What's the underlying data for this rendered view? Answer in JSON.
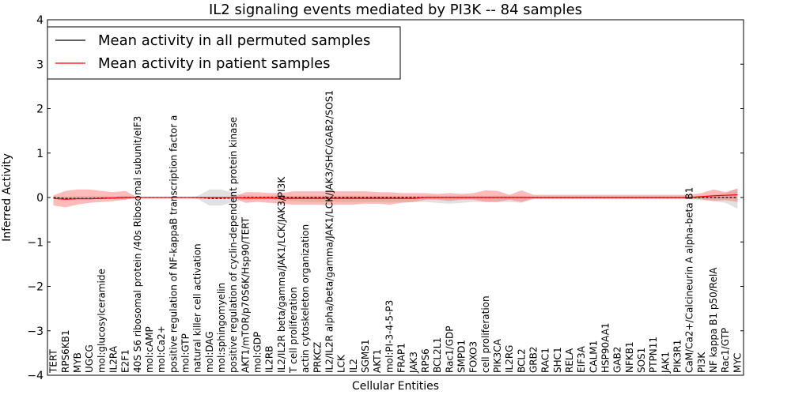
{
  "chart_data": {
    "type": "line",
    "title": "IL2 signaling events mediated by PI3K -- 84 samples",
    "xlabel": "Cellular Entities",
    "ylabel": "Inferred Activity",
    "ylim": [
      -4,
      4
    ],
    "yticks": [
      "4",
      "3",
      "2",
      "1",
      "0",
      "−1",
      "−2",
      "−3",
      "−4"
    ],
    "ytick_values": [
      4,
      3,
      2,
      1,
      0,
      -1,
      -2,
      -3,
      -4
    ],
    "legend": {
      "position": "top-left",
      "entries": [
        {
          "label": "Mean activity in all permuted samples",
          "color": "#000000"
        },
        {
          "label": "Mean activity in patient samples",
          "color": "#ff0000"
        }
      ]
    },
    "colors": {
      "permuted": "#000000",
      "patient": "#ff0000",
      "permuted_band": "#aaaaaa",
      "patient_band": "#ff6666"
    },
    "categories": [
      "TERT",
      "RPS6KB1",
      "MYB",
      "UGCG",
      "mol:glucosylceramide",
      "IL2RA",
      "E2F1",
      "40S S6 ribosomal protein /40s Ribosomal subunit/eIF3",
      "mol:cAMP",
      "mol:Ca2+",
      "positive regulation of NF-kappaB transcription factor a",
      "mol:GTP",
      "natural killer cell activation",
      "mol:DAG",
      "mol:sphingomyelin",
      "positive regulation of cyclin-dependent protein kinase",
      "AKT1/mTOR/p70S6K/Hsp90/TERT",
      "mol:GDP",
      "IL2RB",
      "IL2/IL2R beta/gamma/JAK1/LCK/JAK3/PI3K",
      "T cell proliferation",
      "actin cytoskeleton organization",
      "PRKCZ",
      "IL2/IL2R alpha/beta/gamma/JAK1/LCK/JAK3/SHC/GAB2/SOS1",
      "LCK",
      "IL2",
      "SGMS1",
      "AKT1",
      "mol:PI-3-4-5-P3",
      "FRAP1",
      "JAK3",
      "RPS6",
      "BCL2L1",
      "Rac1/GDP",
      "SMPD1",
      "FOXO3",
      "cell proliferation",
      "PIK3CA",
      "IL2RG",
      "BCL2",
      "GRB2",
      "RAC1",
      "SHC1",
      "RELA",
      "EIF3A",
      "CALM1",
      "HSP90AA1",
      "GAB2",
      "NFKB1",
      "SOS1",
      "PTPN11",
      "JAK1",
      "PIK3R1",
      "CaM/Ca2+/Calcineurin A alpha-beta B1",
      "PI3K",
      "NF kappa B1 p50/RelA",
      "Rac1/GTP",
      "MYC"
    ],
    "series": [
      {
        "name": "Mean activity in all permuted samples",
        "values": [
          0,
          -0.02,
          -0.02,
          -0.02,
          -0.01,
          -0.01,
          0,
          0,
          0,
          0,
          0,
          0,
          0,
          -0.02,
          -0.02,
          -0.01,
          0,
          0,
          0,
          0,
          0,
          0,
          0,
          0,
          0,
          0,
          0,
          0,
          0,
          0,
          0,
          0,
          0,
          0,
          0,
          0,
          0,
          0,
          0,
          0,
          0,
          0,
          0,
          0,
          0,
          0,
          0,
          0,
          0,
          0,
          0,
          0,
          0,
          0,
          0,
          0,
          0,
          0
        ],
        "upper": [
          0.02,
          0.02,
          0.03,
          0.03,
          0.03,
          0.03,
          0.04,
          0,
          0,
          0,
          0,
          0,
          0.03,
          0.18,
          0.18,
          0.1,
          0.05,
          0.04,
          0.04,
          0.04,
          0.04,
          0.04,
          0.04,
          0.04,
          0.04,
          0.04,
          0.04,
          0.04,
          0.04,
          0.04,
          0.04,
          0.04,
          0.04,
          0.04,
          0.04,
          0.04,
          0.04,
          0.04,
          0.04,
          0.04,
          0.02,
          0.02,
          0.02,
          0.02,
          0.02,
          0.02,
          0.02,
          0.02,
          0.02,
          0.02,
          0.02,
          0.02,
          0.02,
          0.02,
          0.04,
          0.06,
          0.1,
          0.2
        ],
        "lower": [
          -0.02,
          -0.03,
          -0.03,
          -0.03,
          -0.03,
          -0.03,
          -0.04,
          0,
          0,
          0,
          0,
          0,
          -0.03,
          -0.18,
          -0.18,
          -0.1,
          -0.05,
          -0.04,
          -0.04,
          -0.06,
          -0.08,
          -0.1,
          -0.1,
          -0.1,
          -0.1,
          -0.1,
          -0.1,
          -0.1,
          -0.1,
          -0.1,
          -0.1,
          -0.1,
          -0.12,
          -0.14,
          -0.12,
          -0.1,
          -0.1,
          -0.1,
          -0.1,
          -0.12,
          -0.04,
          -0.04,
          -0.04,
          -0.04,
          -0.04,
          -0.04,
          -0.04,
          -0.04,
          -0.04,
          -0.04,
          -0.04,
          -0.04,
          -0.04,
          -0.04,
          -0.06,
          -0.08,
          -0.12,
          -0.25
        ]
      },
      {
        "name": "Mean activity in patient samples",
        "values": [
          -0.02,
          -0.04,
          -0.03,
          -0.03,
          -0.02,
          -0.01,
          0,
          0,
          0,
          0,
          0,
          0,
          0,
          0,
          0,
          0,
          -0.01,
          -0.01,
          -0.01,
          -0.02,
          -0.02,
          -0.02,
          -0.02,
          -0.02,
          -0.02,
          -0.02,
          -0.02,
          -0.02,
          -0.02,
          -0.02,
          -0.02,
          0,
          0,
          0,
          0,
          0,
          0,
          0,
          0,
          0,
          0,
          0,
          0,
          0,
          0,
          0,
          0,
          0,
          0,
          0,
          0,
          0,
          0,
          0,
          0.02,
          0.04,
          0.05,
          0.06
        ],
        "upper": [
          0.05,
          0.15,
          0.18,
          0.18,
          0.15,
          0.12,
          0.15,
          0,
          0,
          0,
          0,
          0,
          0,
          0,
          0,
          0,
          0.12,
          0.12,
          0.1,
          0.1,
          0.14,
          0.14,
          0.14,
          0.14,
          0.14,
          0.14,
          0.14,
          0.12,
          0.12,
          0.1,
          0.1,
          0.1,
          0.08,
          0.1,
          0.08,
          0.1,
          0.16,
          0.15,
          0.06,
          0.16,
          0.06,
          0.06,
          0.06,
          0.06,
          0.06,
          0.06,
          0.06,
          0.06,
          0.06,
          0.06,
          0.06,
          0.06,
          0.06,
          0.06,
          0.1,
          0.18,
          0.12,
          0.2
        ],
        "lower": [
          -0.18,
          -0.22,
          -0.16,
          -0.12,
          -0.1,
          -0.08,
          -0.05,
          0,
          0,
          0,
          0,
          0,
          0,
          0,
          0,
          0,
          -0.12,
          -0.1,
          -0.12,
          -0.14,
          -0.16,
          -0.16,
          -0.16,
          -0.16,
          -0.16,
          -0.16,
          -0.14,
          -0.14,
          -0.16,
          -0.12,
          -0.1,
          -0.05,
          -0.05,
          -0.08,
          -0.05,
          -0.05,
          -0.1,
          -0.1,
          -0.05,
          -0.1,
          -0.02,
          -0.02,
          -0.02,
          -0.02,
          -0.02,
          -0.02,
          -0.02,
          -0.02,
          -0.02,
          -0.02,
          -0.02,
          -0.02,
          -0.02,
          -0.02,
          -0.04,
          -0.08,
          -0.06,
          -0.1
        ]
      }
    ]
  }
}
